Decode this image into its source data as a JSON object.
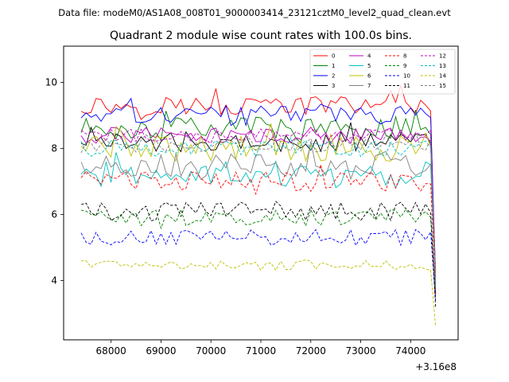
{
  "figure": {
    "suptitle": "Data file: modeM0/AS1A08_008T01_9000003414_23121cztM0_level2_quad_clean.evt",
    "title": "Quadrant 2 module wise count rates with 100.0s bins.",
    "x_offset_label": "+3.16e8"
  },
  "chart_data": {
    "type": "line",
    "title": "Quadrant 2 module wise count rates with 100.0s bins.",
    "xlabel": "",
    "ylabel": "",
    "x_offset": 316000000,
    "x_offset_label": "+3.16e8",
    "xlim": [
      67050,
      74950
    ],
    "ylim": [
      2.2,
      11.1
    ],
    "x_ticks": [
      68000,
      69000,
      70000,
      71000,
      72000,
      73000,
      74000
    ],
    "x_tick_labels": [
      "68000",
      "69000",
      "70000",
      "71000",
      "72000",
      "73000",
      "74000"
    ],
    "y_ticks": [
      4,
      6,
      8,
      10
    ],
    "y_tick_labels": [
      "4",
      "6",
      "8",
      "10"
    ],
    "grid": false,
    "legend_location": "upper right",
    "legend_columns": 4,
    "x_range": [
      67400,
      74500
    ],
    "bin_seconds": 100,
    "dip_times": [
      72650,
      74500
    ],
    "peak_times": [
      72550,
      72850
    ],
    "series": [
      {
        "name": "0",
        "color": "#ff0000",
        "style": "solid",
        "base": 9.3,
        "amp": 0.3,
        "dip": 3.5
      },
      {
        "name": "1",
        "color": "#008000",
        "style": "solid",
        "base": 8.6,
        "amp": 0.35,
        "dip": 3.9
      },
      {
        "name": "2",
        "color": "#0000ff",
        "style": "solid",
        "base": 9.0,
        "amp": 0.3,
        "dip": 4.1
      },
      {
        "name": "3",
        "color": "#000000",
        "style": "solid",
        "base": 8.2,
        "amp": 0.3,
        "dip": 3.6
      },
      {
        "name": "4",
        "color": "#bf00bf",
        "style": "solid",
        "base": 8.4,
        "amp": 0.25,
        "dip": 4.3
      },
      {
        "name": "5",
        "color": "#00bfbf",
        "style": "solid",
        "base": 7.2,
        "amp": 0.4,
        "dip": 3.9
      },
      {
        "name": "6",
        "color": "#bfbf00",
        "style": "solid",
        "base": 8.0,
        "amp": 0.4,
        "dip": 4.2
      },
      {
        "name": "7",
        "color": "#808080",
        "style": "solid",
        "base": 7.5,
        "amp": 0.35,
        "dip": 3.8
      },
      {
        "name": "8",
        "color": "#ff0000",
        "style": "dashed",
        "base": 7.0,
        "amp": 0.3,
        "dip": 3.6
      },
      {
        "name": "9",
        "color": "#008000",
        "style": "dashed",
        "base": 5.9,
        "amp": 0.25,
        "dip": 3.4
      },
      {
        "name": "10",
        "color": "#0000ff",
        "style": "dashed",
        "base": 5.3,
        "amp": 0.25,
        "dip": 3.4
      },
      {
        "name": "11",
        "color": "#000000",
        "style": "dashed",
        "base": 6.1,
        "amp": 0.3,
        "dip": 3.2
      },
      {
        "name": "12",
        "color": "#bf00bf",
        "style": "dashed",
        "base": 8.4,
        "amp": 0.2,
        "dip": 4.0
      },
      {
        "name": "13",
        "color": "#00bfbf",
        "style": "dashed",
        "base": 8.0,
        "amp": 0.25,
        "dip": 3.8
      },
      {
        "name": "14",
        "color": "#bfbf00",
        "style": "dashed",
        "base": 4.45,
        "amp": 0.15,
        "dip": 2.6
      },
      {
        "name": "15",
        "color": "#808080",
        "style": "dashed",
        "base": 8.1,
        "amp": 0.25,
        "dip": 3.7
      }
    ]
  }
}
